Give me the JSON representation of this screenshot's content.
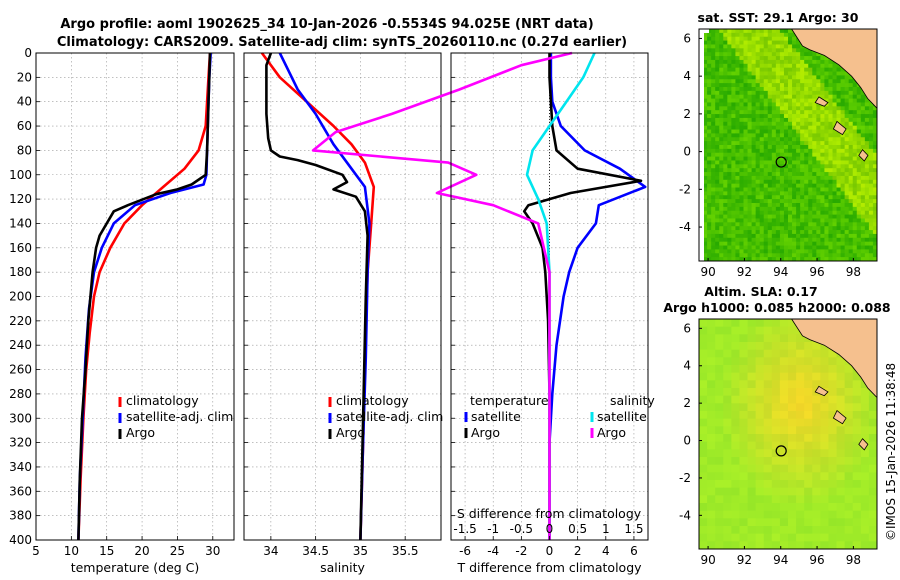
{
  "titles": {
    "line1": "Argo profile: aoml 1902625_34 10-Jan-2026 -0.5534S 94.025E (NRT data)",
    "line2": "Climatology: CARS2009. Satellite-adj clim: synTS_20260110.nc (0.27d earlier)"
  },
  "colors": {
    "climatology": "#ff0000",
    "satellite": "#0000ff",
    "argo": "#000000",
    "s_sat": "#00e5ee",
    "s_argo": "#ff00ff",
    "land": "#f5c08e"
  },
  "depth_axis": {
    "min": 0,
    "max": 400,
    "ticks": [
      0,
      20,
      40,
      60,
      80,
      100,
      120,
      140,
      160,
      180,
      200,
      220,
      240,
      260,
      280,
      300,
      320,
      340,
      360,
      380,
      400
    ]
  },
  "chart_data": [
    {
      "type": "line",
      "panel": "temperature",
      "xlabel": "temperature (deg C)",
      "xlim": [
        5,
        33
      ],
      "xticks": [
        5,
        10,
        15,
        20,
        25,
        30
      ],
      "ylim": [
        400,
        0
      ],
      "legend": [
        "climatology",
        "satellite-adj. clim",
        "Argo"
      ],
      "series": [
        {
          "name": "climatology",
          "color": "#ff0000",
          "x": [
            29.6,
            29.4,
            29.2,
            29.0,
            28.0,
            26.0,
            23.0,
            20.0,
            17.5,
            15.5,
            14.0,
            13.2,
            12.6,
            12.1,
            11.7,
            11.3,
            11.0
          ],
          "y": [
            0,
            20,
            40,
            60,
            80,
            95,
            110,
            125,
            140,
            160,
            180,
            200,
            230,
            260,
            300,
            350,
            400
          ]
        },
        {
          "name": "satellite-adj. clim",
          "color": "#0000ff",
          "x": [
            29.7,
            29.5,
            29.4,
            29.3,
            29.2,
            29.1,
            28.7,
            24.0,
            19.0,
            16.0,
            14.3,
            13.2,
            12.5,
            12.0,
            11.6,
            11.2,
            11.0
          ],
          "y": [
            0,
            20,
            40,
            60,
            80,
            100,
            108,
            115,
            125,
            140,
            160,
            180,
            210,
            250,
            300,
            350,
            400
          ]
        },
        {
          "name": "Argo",
          "color": "#000000",
          "x": [
            29.6,
            29.5,
            29.4,
            29.3,
            29.2,
            29.0,
            27.0,
            25.0,
            22.0,
            18.0,
            16.0,
            14.0,
            13.5,
            13.0,
            12.4,
            12.0,
            11.5,
            11.2,
            11.0
          ],
          "y": [
            0,
            20,
            40,
            60,
            80,
            100,
            108,
            112,
            116,
            125,
            130,
            150,
            160,
            180,
            220,
            260,
            300,
            350,
            400
          ]
        }
      ]
    },
    {
      "type": "line",
      "panel": "salinity",
      "xlabel": "salinity",
      "xlim": [
        33.7,
        35.9
      ],
      "xticks": [
        34,
        34.5,
        35,
        35.5
      ],
      "ylim": [
        400,
        0
      ],
      "legend": [
        "climatology",
        "satellite-adj. clim",
        "Argo"
      ],
      "series": [
        {
          "name": "climatology",
          "color": "#ff0000",
          "x": [
            33.9,
            34.1,
            34.4,
            34.7,
            34.9,
            35.05,
            35.15,
            35.12,
            35.08,
            35.05,
            35.03,
            35.0
          ],
          "y": [
            0,
            20,
            40,
            60,
            75,
            90,
            110,
            140,
            180,
            250,
            320,
            400
          ]
        },
        {
          "name": "satellite-adj. clim",
          "color": "#0000ff",
          "x": [
            34.1,
            34.2,
            34.3,
            34.5,
            34.7,
            34.9,
            35.05,
            35.1,
            35.08,
            35.06,
            35.03,
            35.0
          ],
          "y": [
            0,
            15,
            30,
            50,
            75,
            95,
            110,
            140,
            180,
            250,
            320,
            400
          ]
        },
        {
          "name": "Argo",
          "color": "#000000",
          "x": [
            34.0,
            33.95,
            33.95,
            33.95,
            33.97,
            34.0,
            34.1,
            34.3,
            34.5,
            34.8,
            34.85,
            34.7,
            34.95,
            35.05,
            35.08,
            35.06,
            35.03,
            35.0
          ],
          "y": [
            0,
            10,
            30,
            50,
            70,
            80,
            85,
            88,
            92,
            100,
            106,
            112,
            118,
            130,
            150,
            200,
            300,
            400
          ]
        }
      ]
    },
    {
      "type": "line",
      "panel": "difference",
      "xlabel": "T difference from climatology",
      "xlabel2": "S difference from climatology",
      "xlim": [
        -7,
        7
      ],
      "xticks": [
        -6,
        -4,
        -2,
        0,
        2,
        4,
        6
      ],
      "xticks2_labels": [
        "-1.5",
        "-1",
        "-0.5",
        "0",
        "0.5",
        "1",
        "1.5"
      ],
      "ylim": [
        400,
        0
      ],
      "legend_title_left": "temperature",
      "legend_title_right": "salinity",
      "legend": [
        "satellite",
        "Argo",
        "satellite",
        "Argo"
      ],
      "series": [
        {
          "name": "T satellite",
          "color": "#0000ff",
          "x": [
            0.1,
            0.1,
            0.2,
            0.8,
            2.5,
            5.0,
            6.8,
            3.5,
            3.3,
            2.0,
            1.4,
            1.0,
            0.5,
            0.2,
            0.0,
            0.0,
            0.0
          ],
          "y": [
            0,
            20,
            40,
            60,
            80,
            95,
            110,
            125,
            140,
            160,
            180,
            200,
            240,
            280,
            320,
            360,
            400
          ]
        },
        {
          "name": "T Argo",
          "color": "#000000",
          "x": [
            0.0,
            0.0,
            0.1,
            0.2,
            0.5,
            2.0,
            6.5,
            1.5,
            -1.5,
            -1.8,
            -1.2,
            -0.5,
            -0.3,
            -0.1,
            0.0,
            0.0,
            0.0
          ],
          "y": [
            0,
            20,
            40,
            60,
            80,
            95,
            105,
            115,
            125,
            130,
            140,
            160,
            180,
            220,
            280,
            340,
            400
          ]
        },
        {
          "name": "S satellite",
          "color": "#00e5ee",
          "x": [
            0.8,
            0.6,
            0.3,
            0.0,
            -0.3,
            -0.4,
            -0.2,
            -0.05,
            0.0,
            0.0,
            0.0
          ],
          "y": [
            0,
            20,
            40,
            60,
            80,
            100,
            120,
            140,
            180,
            300,
            400
          ]
        },
        {
          "name": "S Argo",
          "color": "#ff00ff",
          "x": [
            0.4,
            -0.5,
            -1.6,
            -2.8,
            -3.8,
            -4.2,
            -3.0,
            -1.8,
            -1.3,
            -2.0,
            -1.0,
            -0.2,
            0.0,
            0.0,
            0.0
          ],
          "y": [
            0,
            10,
            30,
            50,
            65,
            80,
            85,
            90,
            100,
            115,
            125,
            140,
            180,
            300,
            400
          ]
        }
      ]
    },
    {
      "type": "heatmap",
      "panel": "sst_map",
      "title": "sat. SST: 29.1 Argo: 30",
      "xlim": [
        89.5,
        99.3
      ],
      "ylim": [
        -5.8,
        6.5
      ],
      "xticks": [
        90,
        92,
        94,
        96,
        98
      ],
      "yticks": [
        -4,
        -2,
        0,
        2,
        4,
        6
      ],
      "argo_lon": 94.025,
      "argo_lat": -0.5534
    },
    {
      "type": "heatmap",
      "panel": "sla_map",
      "title": "Altim. SLA: 0.17",
      "subtitle": "Argo h1000: 0.085 h2000: 0.088",
      "xlim": [
        89.5,
        99.3
      ],
      "ylim": [
        -5.8,
        6.5
      ],
      "xticks": [
        90,
        92,
        94,
        96,
        98
      ],
      "yticks": [
        -4,
        -2,
        0,
        2,
        4,
        6
      ],
      "argo_lon": 94.025,
      "argo_lat": -0.5534
    }
  ],
  "stamp": "©IMOS 15-Jan-2026 11:38:48"
}
